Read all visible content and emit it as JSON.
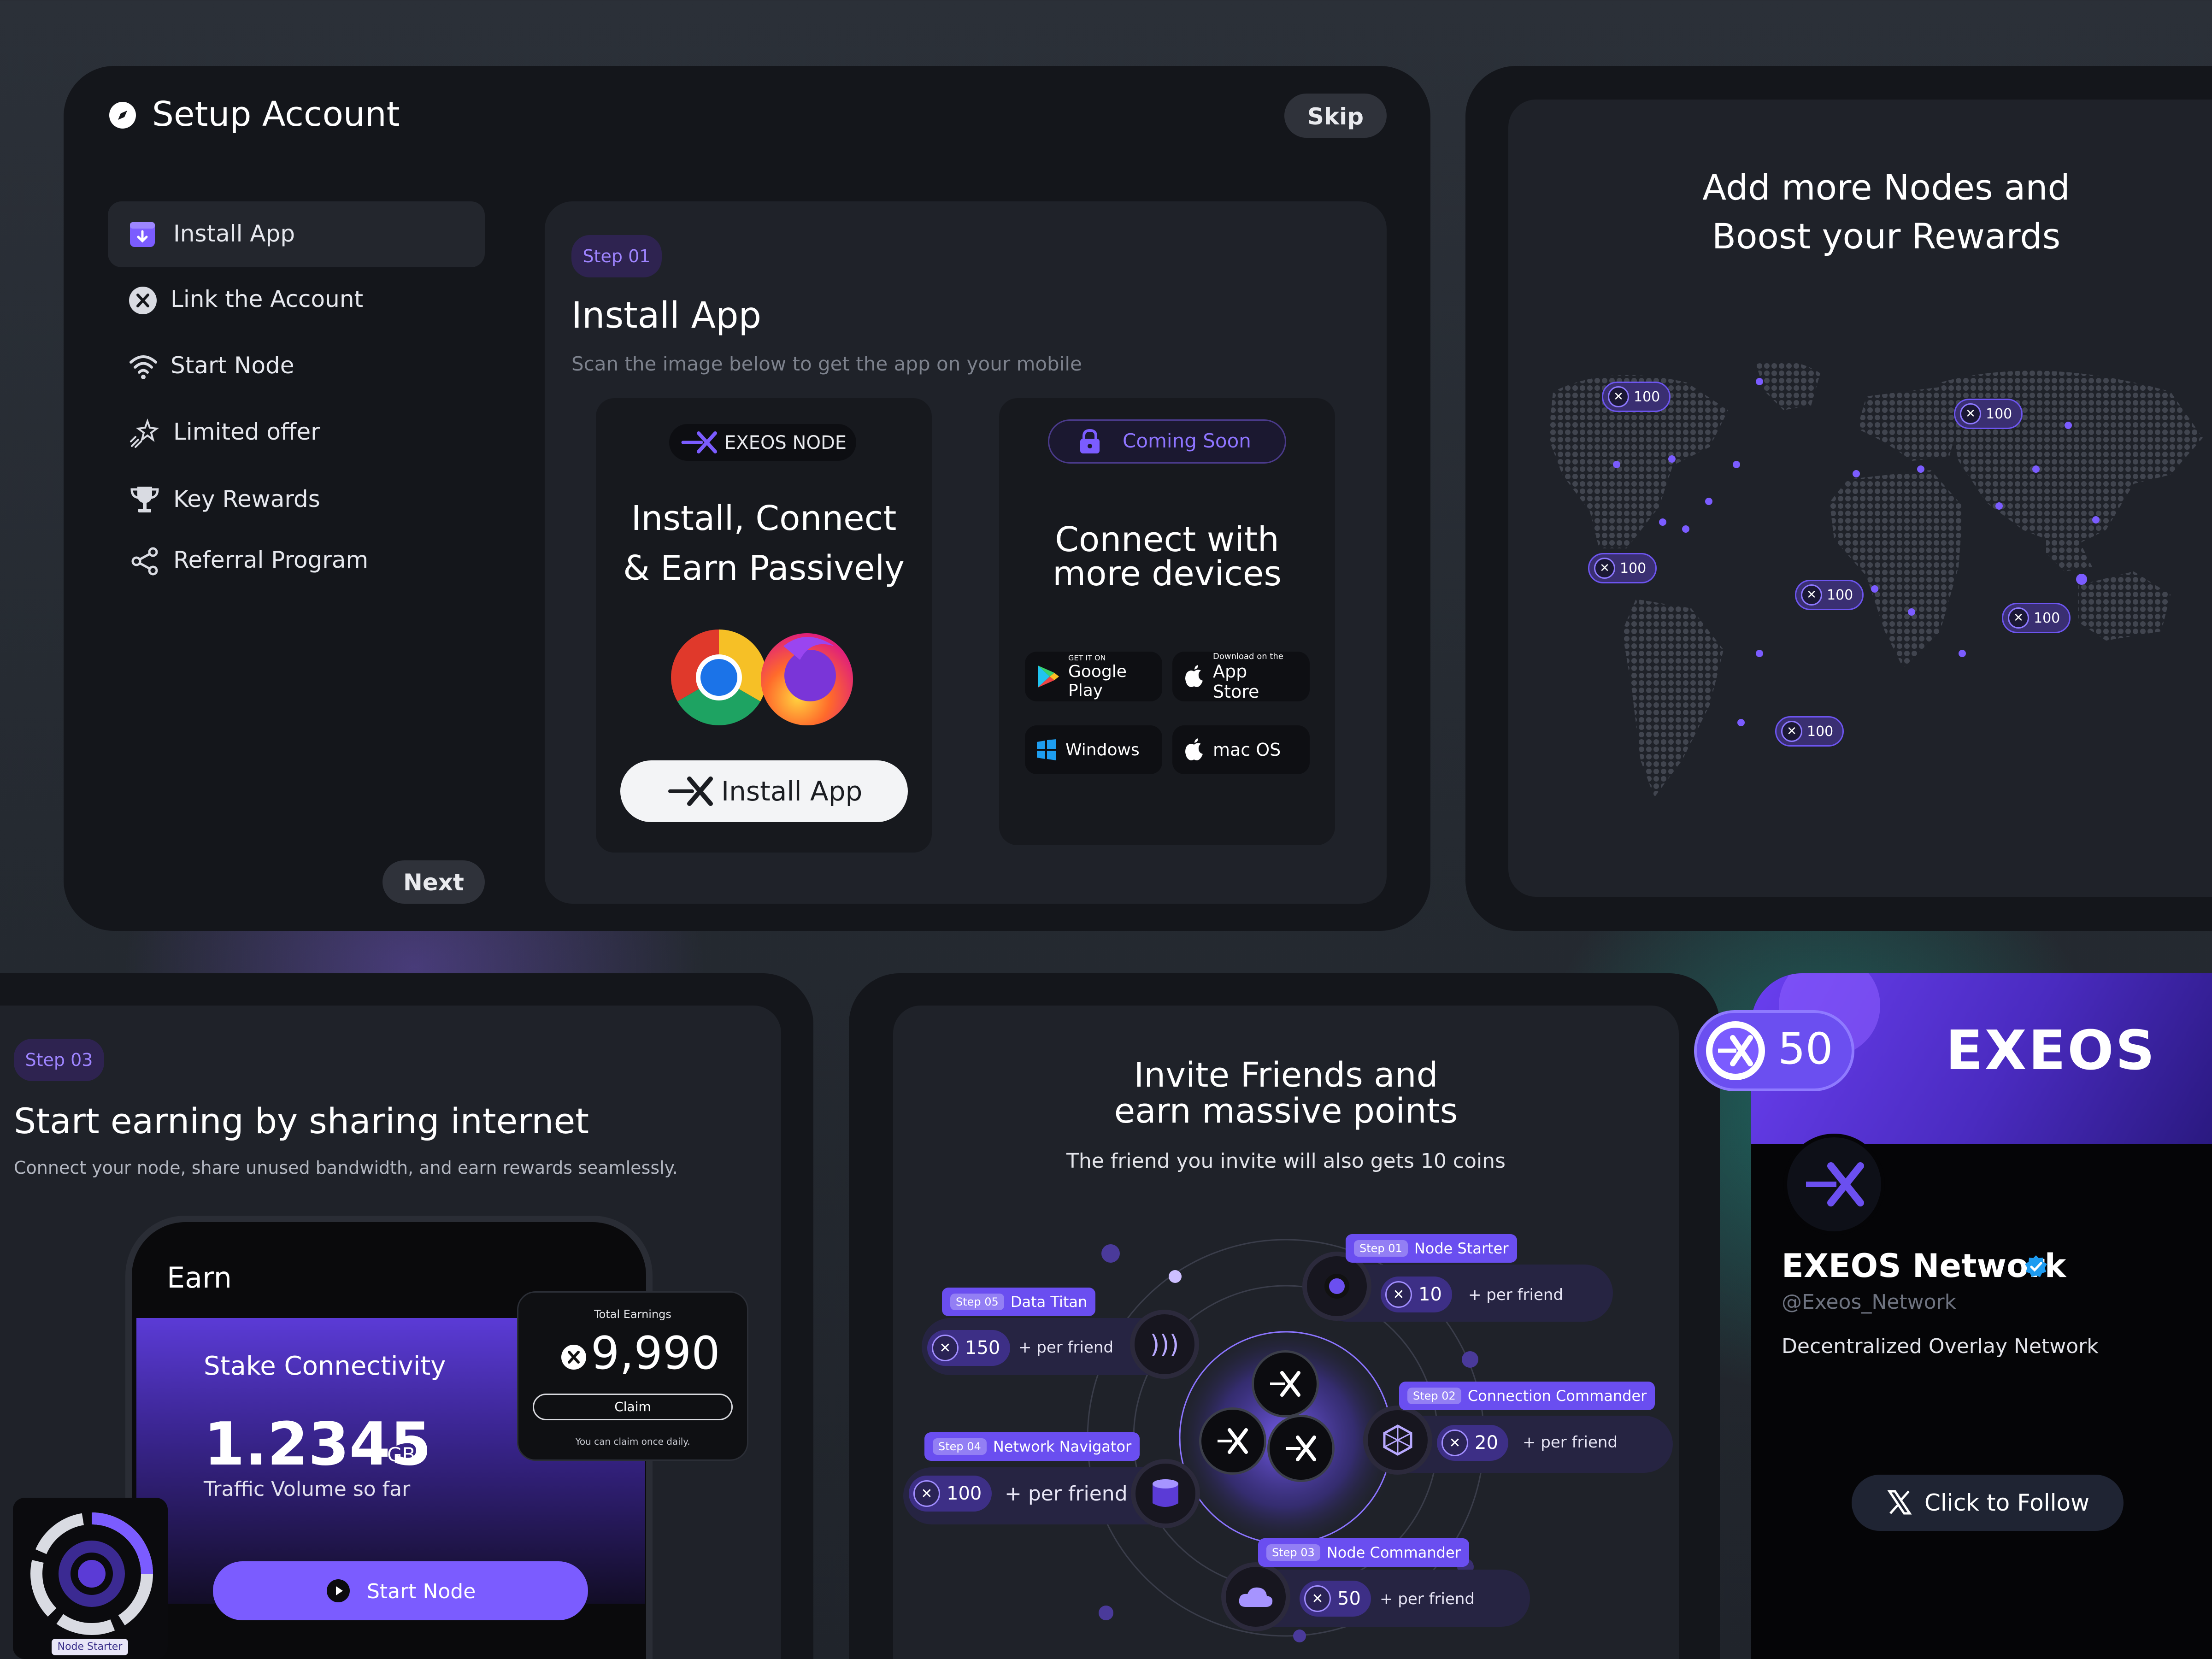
{
  "setup": {
    "title": "Setup Account",
    "skip": "Skip",
    "next": "Next",
    "nav": [
      {
        "label": "Install App",
        "icon": "download-box-icon",
        "active": true
      },
      {
        "label": "Link the Account",
        "icon": "x-circle-icon"
      },
      {
        "label": "Start Node",
        "icon": "wifi-icon"
      },
      {
        "label": "Limited offer",
        "icon": "sparkle-star-icon"
      },
      {
        "label": "Key Rewards",
        "icon": "trophy-icon"
      },
      {
        "label": "Referral Program",
        "icon": "share-icon"
      }
    ],
    "step": {
      "badge": "Step 01",
      "title": "Install App",
      "subtitle": "Scan the image below to get the app on your mobile"
    },
    "install_card": {
      "brand": "EXEOS NODE",
      "heading_line1": "Install, Connect",
      "heading_line2": "& Earn Passively",
      "button": "Install App"
    },
    "devices_card": {
      "badge": "Coming Soon",
      "heading_line1": "Connect with",
      "heading_line2": "more devices",
      "stores": [
        {
          "small": "GET IT ON",
          "big": "Google Play",
          "icon": "google-play-icon"
        },
        {
          "small": "Download on the",
          "big": "App Store",
          "icon": "apple-icon"
        },
        {
          "small": "",
          "big": "Windows",
          "icon": "windows-icon"
        },
        {
          "small": "",
          "big": "mac OS",
          "icon": "apple-icon"
        }
      ]
    }
  },
  "map": {
    "title_line1": "Add more Nodes and",
    "title_line2": "Boost your Rewards",
    "node_value": "100"
  },
  "earn": {
    "badge": "Step 03",
    "title": "Start earning by sharing internet",
    "subtitle": "Connect your node, share unused bandwidth, and earn rewards seamlessly.",
    "phone": {
      "header": "Earn",
      "section": "Stake Connectivity",
      "traffic_value": "1.2345",
      "traffic_unit": "GB",
      "traffic_label": "Traffic Volume so far",
      "button": "Start Node"
    },
    "earnings": {
      "label": "Total Earnings",
      "value": "9,990",
      "claim": "Claim",
      "note": "You can claim once daily."
    },
    "node_badge": "Node Starter"
  },
  "invite": {
    "title_line1": "Invite Friends and",
    "title_line2": "earn massive points",
    "subtitle": "The friend you invite will also gets 10 coins",
    "rewards": [
      {
        "step": "Step 01",
        "name": "Node Starter",
        "value": "10",
        "per": "+ per friend"
      },
      {
        "step": "Step 02",
        "name": "Connection Commander",
        "value": "20",
        "per": "+ per friend"
      },
      {
        "step": "Step 03",
        "name": "Node Commander",
        "value": "50",
        "per": "+ per friend"
      },
      {
        "step": "Step 04",
        "name": "Network Navigator",
        "value": "100",
        "per": "+ per friend"
      },
      {
        "step": "Step 05",
        "name": "Data Titan",
        "value": "150",
        "per": "+ per friend"
      }
    ]
  },
  "social": {
    "reward": "50",
    "banner_logo": "EXEOS",
    "name": "EXEOS Network",
    "handle": "@Exeos_Network",
    "bio": "Decentralized Overlay Network",
    "follow": "Click to Follow"
  },
  "colors": {
    "accent": "#7b5cff",
    "panel": "#14161b",
    "card": "#1f2229",
    "teal": "#14d2b4"
  }
}
